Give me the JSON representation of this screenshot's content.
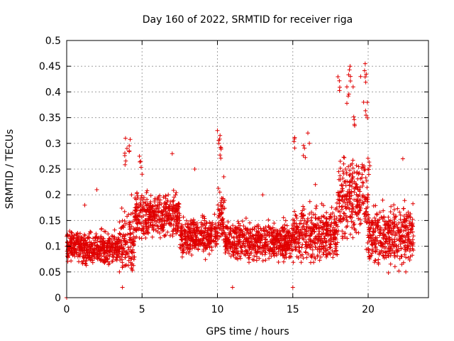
{
  "chart_data": {
    "type": "scatter",
    "title": "Day 160 of 2022, SRMTID for receiver riga",
    "xlabel": "GPS time / hours",
    "ylabel": "SRMTID / TECUs",
    "xlim": [
      0,
      24
    ],
    "ylim": [
      0,
      0.5
    ],
    "xticks": [
      0,
      5,
      10,
      15,
      20
    ],
    "yticks": [
      0,
      0.05,
      0.1,
      0.15,
      0.2,
      0.25,
      0.3,
      0.35,
      0.4,
      0.45,
      0.5
    ],
    "grid": true,
    "marker": "+",
    "color": "#e00000",
    "series_summary": [
      {
        "x_range": [
          0.0,
          1.0
        ],
        "typical_range": [
          0.06,
          0.14
        ]
      },
      {
        "x_range": [
          1.0,
          3.5
        ],
        "typical_range": [
          0.05,
          0.14
        ]
      },
      {
        "x_range": [
          3.5,
          4.5
        ],
        "typical_range": [
          0.02,
          0.2
        ],
        "peaks": [
          0.31,
          0.29
        ]
      },
      {
        "x_range": [
          4.5,
          7.5
        ],
        "typical_range": [
          0.1,
          0.22
        ],
        "peaks": [
          0.28
        ]
      },
      {
        "x_range": [
          7.5,
          10.0
        ],
        "typical_range": [
          0.07,
          0.17
        ]
      },
      {
        "x_range": [
          10.0,
          10.5
        ],
        "typical_range": [
          0.06,
          0.24
        ],
        "peaks": [
          0.325,
          0.3
        ]
      },
      {
        "x_range": [
          10.5,
          15.0
        ],
        "typical_range": [
          0.06,
          0.16
        ]
      },
      {
        "x_range": [
          15.0,
          18.0
        ],
        "typical_range": [
          0.05,
          0.2
        ],
        "peaks": [
          0.32,
          0.3
        ]
      },
      {
        "x_range": [
          18.0,
          20.0
        ],
        "typical_range": [
          0.08,
          0.3
        ],
        "peaks": [
          0.45,
          0.45,
          0.43,
          0.41,
          0.38,
          0.36
        ]
      },
      {
        "x_range": [
          20.0,
          23.0
        ],
        "typical_range": [
          0.04,
          0.2
        ],
        "peaks": [
          0.27
        ]
      }
    ],
    "sample_points": [
      [
        0.0,
        0.0
      ],
      [
        0.05,
        0.1
      ],
      [
        0.2,
        0.09
      ],
      [
        0.5,
        0.12
      ],
      [
        0.8,
        0.07
      ],
      [
        1.2,
        0.18
      ],
      [
        1.5,
        0.1
      ],
      [
        2.0,
        0.21
      ],
      [
        2.5,
        0.08
      ],
      [
        3.0,
        0.12
      ],
      [
        3.5,
        0.05
      ],
      [
        3.7,
        0.02
      ],
      [
        3.9,
        0.31
      ],
      [
        4.0,
        0.29
      ],
      [
        4.3,
        0.2
      ],
      [
        5.0,
        0.24
      ],
      [
        5.5,
        0.17
      ],
      [
        6.0,
        0.15
      ],
      [
        6.5,
        0.12
      ],
      [
        7.0,
        0.28
      ],
      [
        7.5,
        0.15
      ],
      [
        8.0,
        0.12
      ],
      [
        8.5,
        0.25
      ],
      [
        9.0,
        0.16
      ],
      [
        9.5,
        0.1
      ],
      [
        10.0,
        0.325
      ],
      [
        10.1,
        0.3
      ],
      [
        10.5,
        0.12
      ],
      [
        11.0,
        0.02
      ],
      [
        11.5,
        0.14
      ],
      [
        12.0,
        0.13
      ],
      [
        12.5,
        0.1
      ],
      [
        13.0,
        0.2
      ],
      [
        13.5,
        0.11
      ],
      [
        14.0,
        0.13
      ],
      [
        14.5,
        0.1
      ],
      [
        15.0,
        0.02
      ],
      [
        15.5,
        0.13
      ],
      [
        16.0,
        0.32
      ],
      [
        16.1,
        0.3
      ],
      [
        16.5,
        0.22
      ],
      [
        17.0,
        0.1
      ],
      [
        17.5,
        0.12
      ],
      [
        18.0,
        0.2
      ],
      [
        18.5,
        0.25
      ],
      [
        18.8,
        0.45
      ],
      [
        19.0,
        0.41
      ],
      [
        19.5,
        0.43
      ],
      [
        19.7,
        0.38
      ],
      [
        19.8,
        0.455
      ],
      [
        20.0,
        0.2
      ],
      [
        20.5,
        0.15
      ],
      [
        21.0,
        0.13
      ],
      [
        21.5,
        0.15
      ],
      [
        22.0,
        0.1
      ],
      [
        22.3,
        0.27
      ],
      [
        22.5,
        0.05
      ],
      [
        23.0,
        0.12
      ]
    ]
  }
}
